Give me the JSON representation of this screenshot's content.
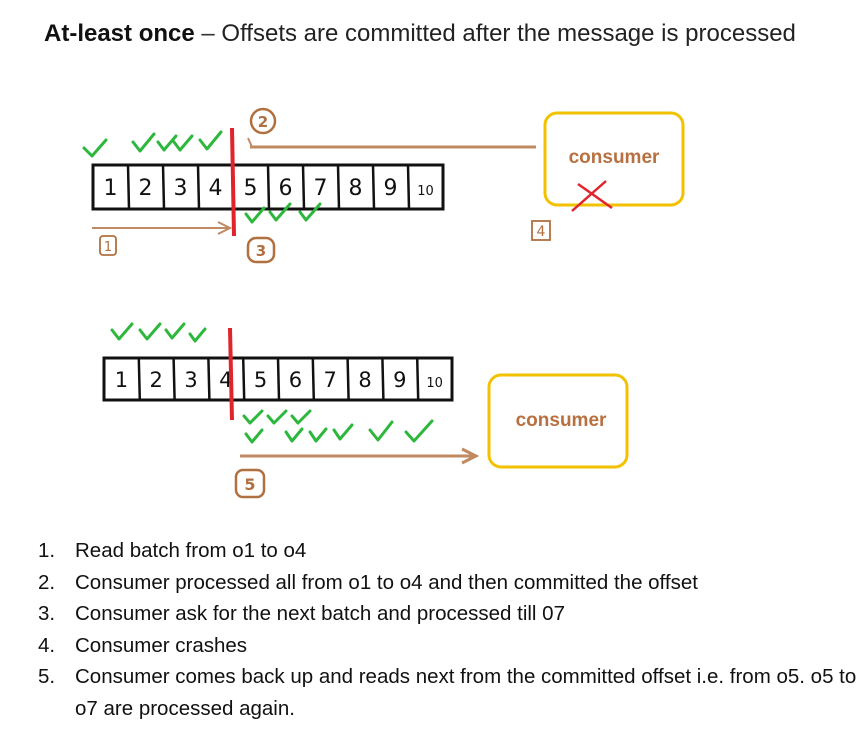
{
  "title": {
    "bold": "At-least once",
    "dash": "–",
    "rest": "Offsets are committed after the message is processed"
  },
  "diagram": {
    "top": {
      "cells": [
        "1",
        "2",
        "3",
        "4",
        "5",
        "6",
        "7",
        "8",
        "9",
        "10"
      ],
      "consumer_label": "consumer",
      "markers": [
        "1",
        "2",
        "3",
        "4"
      ],
      "consumer_crashed": true
    },
    "bottom": {
      "cells": [
        "1",
        "2",
        "3",
        "4",
        "5",
        "6",
        "7",
        "8",
        "9",
        "10"
      ],
      "consumer_label": "consumer",
      "marker": "5"
    },
    "colors": {
      "box_border": "#f2c200",
      "consumer_text": "#b87040",
      "check": "#2db83d",
      "arrow": "#c08a62",
      "commit_line": "#e0242c",
      "cross": "#e0242c"
    }
  },
  "steps": [
    {
      "num": "1.",
      "text": "Read batch from o1 to o4"
    },
    {
      "num": "2.",
      "text": "Consumer processed all from o1 to o4 and then committed the offset"
    },
    {
      "num": "3.",
      "text": "Consumer ask for the next batch and processed till 07"
    },
    {
      "num": "4.",
      "text": "Consumer crashes"
    },
    {
      "num": "5.",
      "text": "Consumer comes back up and reads next from the committed offset i.e. from o5. o5 to o7 are processed again."
    }
  ]
}
